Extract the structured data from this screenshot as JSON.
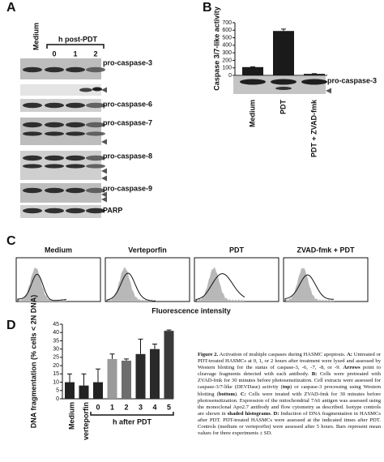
{
  "panel_a": {
    "letter": "A",
    "medium": "Medium",
    "time_header": "h post-PDT",
    "lanes": [
      "0",
      "1",
      "2"
    ],
    "blots": [
      "pro-caspase-3",
      "pro-caspase-6",
      "pro-caspase-7",
      "pro-caspase-8",
      "pro-caspase-9",
      "PARP"
    ]
  },
  "panel_b": {
    "letter": "B",
    "blot_label": "pro-caspase-3",
    "chart_data": {
      "type": "bar",
      "y_label": "Caspase 3/7-like activity",
      "categories": [
        "Medium",
        "PDT",
        "PDT + ZVAD-fmk"
      ],
      "values": [
        110,
        590,
        20
      ],
      "errors": [
        5,
        25,
        3
      ],
      "color": "#1a1a1a",
      "ylim": [
        0,
        700
      ],
      "yticks": [
        0,
        100,
        200,
        300,
        400,
        500,
        600,
        700
      ]
    }
  },
  "panel_c": {
    "letter": "C",
    "titles": [
      "Medium",
      "Verteporfin",
      "PDT",
      "ZVAD-fmk + PDT"
    ],
    "x_label": "Fluorescence intensity"
  },
  "panel_d": {
    "letter": "D",
    "chart_data": {
      "type": "bar",
      "y_label": "DNA fragmentation (% cells < 2N DNA)",
      "x_label": "h after PDT",
      "categories": [
        "Medium",
        "verteporfin",
        "0",
        "1",
        "2",
        "3",
        "4",
        "5"
      ],
      "values": [
        10,
        8,
        10,
        24,
        23,
        27,
        30,
        41
      ],
      "errors": [
        5,
        7,
        8,
        3,
        1,
        9,
        3,
        0.5
      ],
      "colors": [
        "#222222",
        "#222222",
        "#222222",
        "#9a9a9a",
        "#6e6e6e",
        "#2a2a2a",
        "#2a2a2a",
        "#3a3a3a"
      ],
      "ylim": [
        0,
        45
      ],
      "yticks": [
        0,
        5,
        10,
        15,
        20,
        25,
        30,
        35,
        40,
        45
      ]
    }
  },
  "caption": [
    {
      "text": "Figure 2.",
      "bold": true
    },
    {
      "text": " Activation of multiple caspases during HASMC apoptosis. ",
      "bold": false
    },
    {
      "text": "A:",
      "bold": true
    },
    {
      "text": " Untreated or PDT-treated HASMCs at 0, 1, or 2 hours after treatment were lysed and assessed by Western blotting for the status of caspase-3, -6, -7, -8, or -9. ",
      "bold": false
    },
    {
      "text": "Arrows",
      "bold": true
    },
    {
      "text": " point to cleavage fragments detected with each antibody. ",
      "bold": false
    },
    {
      "text": "B:",
      "bold": true
    },
    {
      "text": " Cells were pretreated with ZVAD-fmk for 30 minutes before photosensitization. Cell extracts were assessed for caspase-3/7-like (DEVDase) activity (",
      "bold": false
    },
    {
      "text": "top",
      "bold": true
    },
    {
      "text": ") or caspase-3 processing using Western blotting (",
      "bold": false
    },
    {
      "text": "bottom",
      "bold": true
    },
    {
      "text": "). ",
      "bold": false
    },
    {
      "text": "C:",
      "bold": true
    },
    {
      "text": " Cells were treated with ZVAD-fmk for 30 minutes before photosensitization. Expression of the mitochondrial 7A6 antigen was assessed using the monoclonal Apo2.7 antibody and flow cytometry as described. Isotype controls are shown in ",
      "bold": false
    },
    {
      "text": "shaded histograms",
      "bold": true
    },
    {
      "text": ". ",
      "bold": false
    },
    {
      "text": "D:",
      "bold": true
    },
    {
      "text": " Induction of DNA fragmentation in HASMCs after PDT. PDT-treated HASMCs were assessed at the indicated times after PDT. Controls (medium or verteporfin) were assessed after 5 hours. Bars represent mean values for three experiments ± SD.",
      "bold": false
    }
  ]
}
